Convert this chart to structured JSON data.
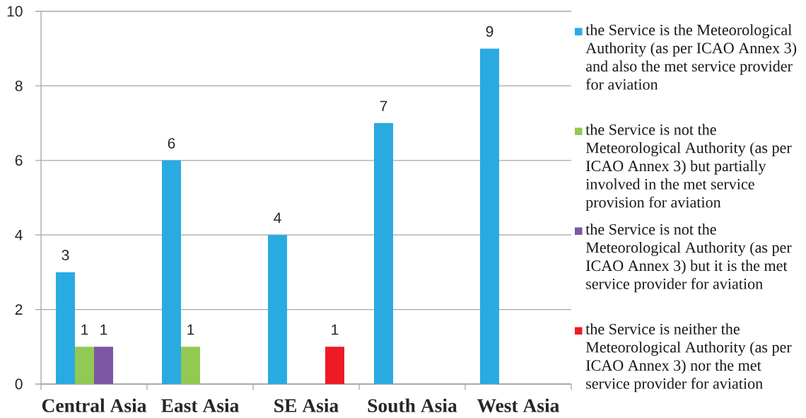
{
  "chart_data": {
    "type": "bar",
    "categories": [
      "Central Asia",
      "East Asia",
      "SE Asia",
      "South Asia",
      "West Asia"
    ],
    "series": [
      {
        "name": "the Service is the Meteorological Authority (as per ICAO Annex 3) and also the met service provider for aviation",
        "color": "#29abe2",
        "values": [
          3,
          6,
          4,
          7,
          9
        ]
      },
      {
        "name": "the Service is not the Meteorological Authority (as per ICAO Annex 3) but partially involved in the met service provision for aviation",
        "color": "#92c953",
        "values": [
          1,
          1,
          null,
          null,
          null
        ]
      },
      {
        "name": "the Service is not the Meteorological Authority (as per ICAO Annex 3) but it is the met service provider for aviation",
        "color": "#7d57a3",
        "values": [
          1,
          null,
          null,
          null,
          null
        ]
      },
      {
        "name": "the Service is neither the Meteorological Authority (as per ICAO Annex 3) nor the met service provider for aviation",
        "color": "#ed1c24",
        "values": [
          null,
          null,
          1,
          null,
          null
        ]
      }
    ],
    "ylim": [
      0,
      10
    ],
    "yticks": [
      0,
      2,
      4,
      6,
      8,
      10
    ],
    "grid": "y",
    "legend": "right",
    "data_labels": true
  }
}
